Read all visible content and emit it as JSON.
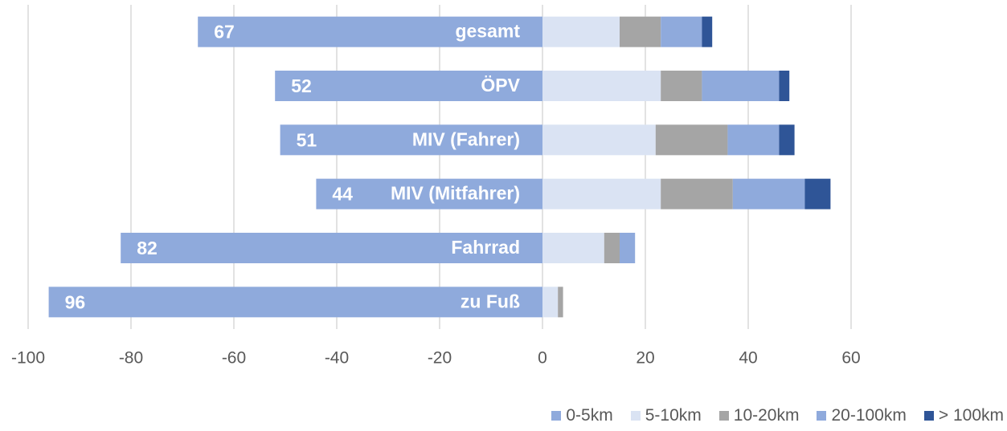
{
  "chart_data": {
    "type": "bar",
    "orientation": "horizontal",
    "stacked": true,
    "categories": [
      "gesamt",
      "ÖPV",
      "MIV (Fahrer)",
      "MIV (Mitfahrer)",
      "Fahrrad",
      "zu Fuß"
    ],
    "series": [
      {
        "name": "0-5km",
        "color": "#8faadc",
        "values": [
          -67,
          -52,
          -51,
          -44,
          -82,
          -96
        ],
        "value_labels": [
          "67",
          "52",
          "51",
          "44",
          "82",
          "96"
        ]
      },
      {
        "name": "5-10km",
        "color": "#dae3f3",
        "values": [
          15,
          23,
          22,
          23,
          12,
          3
        ]
      },
      {
        "name": "10-20km",
        "color": "#a5a5a5",
        "values": [
          8,
          8,
          14,
          14,
          3,
          1
        ]
      },
      {
        "name": "20-100km",
        "color": "#8faadc",
        "values": [
          8,
          15,
          10,
          14,
          3,
          0
        ]
      },
      {
        "name": "> 100km",
        "color": "#2f5597",
        "values": [
          2,
          2,
          3,
          5,
          0,
          0
        ]
      }
    ],
    "xlim": [
      -100,
      60
    ],
    "xticks": [
      -100,
      -80,
      -60,
      -40,
      -20,
      0,
      20,
      40,
      60
    ],
    "grid": true
  }
}
